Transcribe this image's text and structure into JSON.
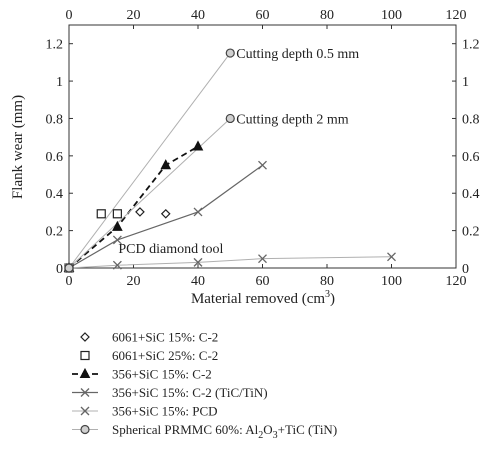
{
  "chart_data": {
    "type": "scatter",
    "xlabel": "Material removed (cm",
    "xlabel_sup": "3",
    "xlabel_tail": ")",
    "ylabel": "Flank wear (mm)",
    "xlim": [
      0,
      120
    ],
    "ylim": [
      0,
      1.3
    ],
    "xticks": [
      "0",
      "20",
      "40",
      "60",
      "80",
      "100",
      "120"
    ],
    "yticks": [
      "0",
      "0.2",
      "0.4",
      "0.6",
      "0.8",
      "1",
      "1.2"
    ],
    "grid": false,
    "annotations": [
      {
        "text": "Cutting depth 0.5 mm",
        "x": 50,
        "y": 1.15
      },
      {
        "text": "Cutting depth 2 mm",
        "x": 50,
        "y": 0.8
      },
      {
        "text": "PCD diamond tool",
        "x": 15,
        "y": 0.09
      }
    ],
    "series": [
      {
        "name": "6061+SiC 15%: C-2",
        "marker": "diamond",
        "line": "none",
        "points": [
          [
            0,
            0
          ],
          [
            22,
            0.3
          ],
          [
            30,
            0.29
          ]
        ]
      },
      {
        "name": "6061+SiC 25%: C-2",
        "marker": "square",
        "line": "none",
        "points": [
          [
            0,
            0
          ],
          [
            10,
            0.29
          ],
          [
            15,
            0.29
          ]
        ]
      },
      {
        "name": "356+SiC 15%: C-2",
        "marker": "triangle",
        "line": "dashed",
        "points": [
          [
            0,
            0
          ],
          [
            15,
            0.22
          ],
          [
            30,
            0.55
          ],
          [
            40,
            0.65
          ]
        ]
      },
      {
        "name": "356+SiC 15%: C-2 (TiC/TiN)",
        "marker": "x",
        "line": "solid",
        "points": [
          [
            0,
            0
          ],
          [
            15,
            0.15
          ],
          [
            40,
            0.3
          ],
          [
            60,
            0.55
          ]
        ]
      },
      {
        "name": "356+SiC 15%: PCD",
        "marker": "x",
        "line": "solid-light",
        "points": [
          [
            0,
            0
          ],
          [
            15,
            0.015
          ],
          [
            40,
            0.03
          ],
          [
            60,
            0.05
          ],
          [
            100,
            0.06
          ]
        ]
      },
      {
        "name": "Spherical PRMMC 60%: Al2O3+TiC (TiN)",
        "marker": "circle",
        "line": "solid-light",
        "segments": [
          [
            [
              0,
              0
            ],
            [
              50,
              1.15
            ]
          ],
          [
            [
              0,
              0
            ],
            [
              50,
              0.8
            ]
          ]
        ],
        "points": [
          [
            0,
            0
          ],
          [
            50,
            1.15
          ],
          [
            50,
            0.8
          ]
        ]
      }
    ],
    "legend": {
      "position": "bottom",
      "items": [
        {
          "marker": "diamond",
          "line": "none",
          "parts": [
            "6061+SiC 15%: C-2"
          ]
        },
        {
          "marker": "square",
          "line": "none",
          "parts": [
            "6061+SiC 25%: C-2"
          ]
        },
        {
          "marker": "triangle",
          "line": "dashed",
          "parts": [
            "356+SiC 15%: C-2"
          ]
        },
        {
          "marker": "x",
          "line": "solid",
          "parts": [
            "356+SiC 15%: C-2 (TiC/TiN)"
          ]
        },
        {
          "marker": "x",
          "line": "solid-light",
          "parts": [
            "356+SiC 15%: PCD"
          ]
        },
        {
          "marker": "circle",
          "line": "solid-light",
          "parts": [
            "Spherical PRMMC 60%: Al",
            "2",
            "O",
            "3",
            "+TiC (TiN)"
          ]
        }
      ]
    }
  }
}
